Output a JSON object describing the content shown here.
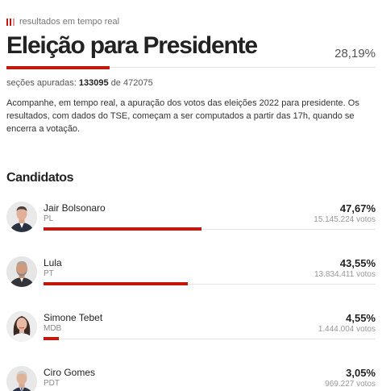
{
  "header": {
    "live_label": "resultados em tempo real",
    "title": "Eleição para Presidente",
    "percent_counted": "28,19%",
    "percent_counted_value": 28.19
  },
  "sections": {
    "label": "seções apuradas:",
    "counted": "133095",
    "of": "de",
    "total": "472075"
  },
  "intro": "Acompanhe, em tempo real, a apuração dos votos das eleições 2022 para presidente. Os resultados, com dados do TSE, começam a ser computados a partir das 17h, quando se encerra a votação.",
  "candidates_heading": "Candidatos",
  "candidates": [
    {
      "name": "Jair Bolsonaro",
      "party": "PL",
      "percent": "47,67%",
      "percent_value": 47.67,
      "votes": "15.145.224 votos",
      "bar_color": "#c4170c",
      "avatar_icon": "jair-bolsonaro-photo"
    },
    {
      "name": "Lula",
      "party": "PT",
      "percent": "43,55%",
      "percent_value": 43.55,
      "votes": "13.834.411 votos",
      "bar_color": "#c4170c",
      "avatar_icon": "lula-photo"
    },
    {
      "name": "Simone Tebet",
      "party": "MDB",
      "percent": "4,55%",
      "percent_value": 4.55,
      "votes": "1.444.004 votos",
      "bar_color": "#c4170c",
      "avatar_icon": "simone-tebet-photo"
    },
    {
      "name": "Ciro Gomes",
      "party": "PDT",
      "percent": "3,05%",
      "percent_value": 3.05,
      "votes": "969.227 votos",
      "bar_color": "#c4170c",
      "avatar_icon": "ciro-gomes-photo"
    }
  ]
}
